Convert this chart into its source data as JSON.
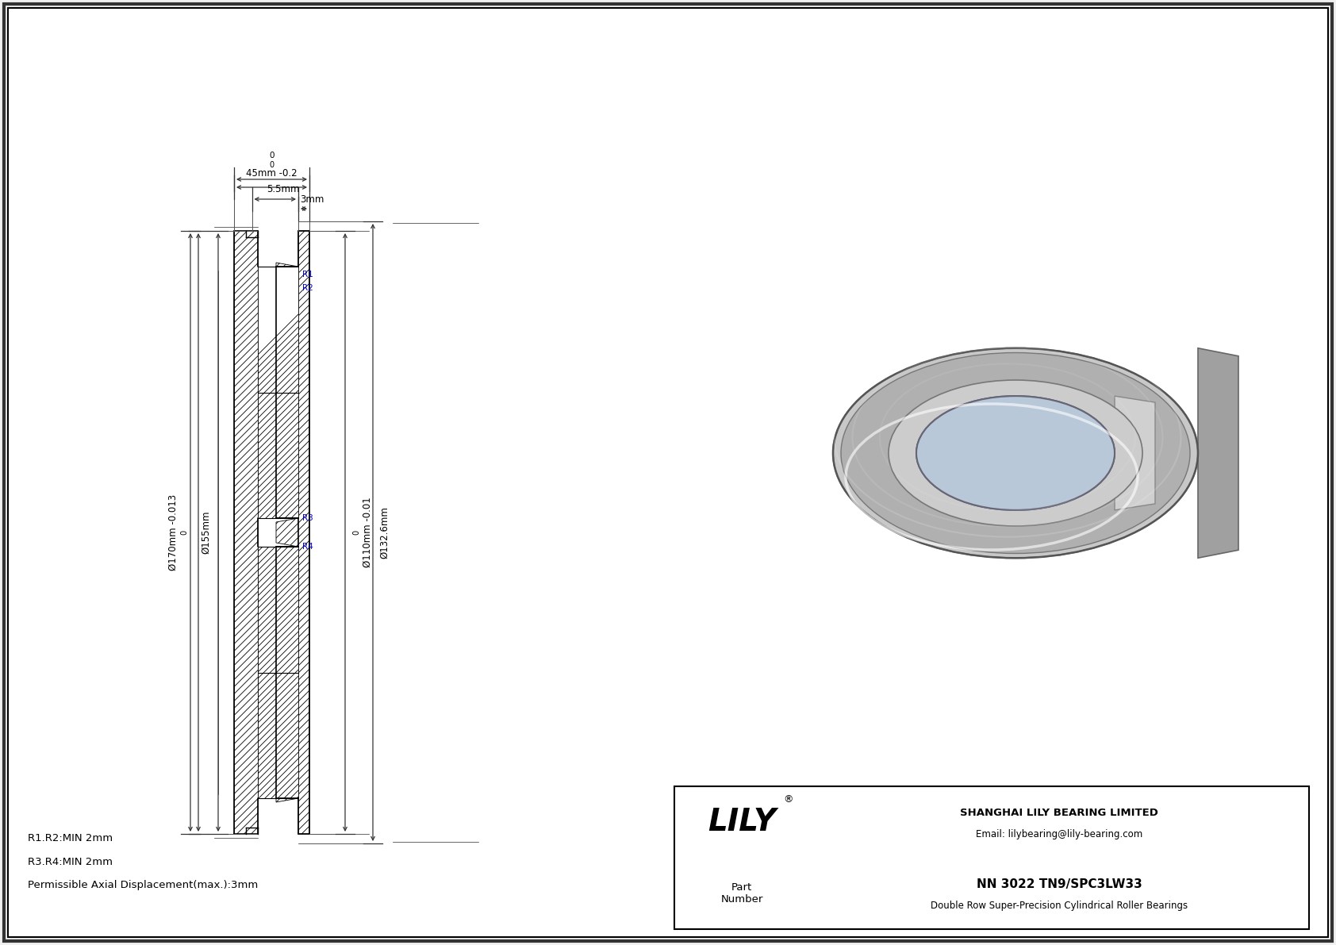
{
  "bg_color": "#f0f0f0",
  "drawing_bg": "#ffffff",
  "title": "NN 3022 TN9/SPC3LW33",
  "subtitle": "Double Row Super-Precision Cylindrical Roller Bearings",
  "company": "SHANGHAI LILY BEARING LIMITED",
  "email": "Email: lilybearing@lily-bearing.com",
  "part_label": "Part\nNumber",
  "logo": "LILY",
  "r_labels": [
    "R1",
    "R2",
    "R3",
    "R4"
  ],
  "r_notes": [
    "R1.R2:MIN 2mm",
    "R3.R4:MIN 2mm",
    "Permissible Axial Displacement(max.):3mm"
  ],
  "dim_outer_d": "Ø170mm -0.013",
  "dim_outer_d2": "Ø155mm",
  "dim_inner_d": "Ø110mm -0.01",
  "dim_inner_d2": "Ø132.6mm",
  "dim_width": "45mm -0.2",
  "dim_width2": "3mm",
  "dim_width3": "5.5mm",
  "dim_zero1": "0",
  "dim_zero2": "0",
  "dim_zero3": "0",
  "line_color": "#000000",
  "dim_line_color": "#404040",
  "hatch_color": "#000000",
  "blue_color": "#0000cc",
  "text_color": "#000000"
}
